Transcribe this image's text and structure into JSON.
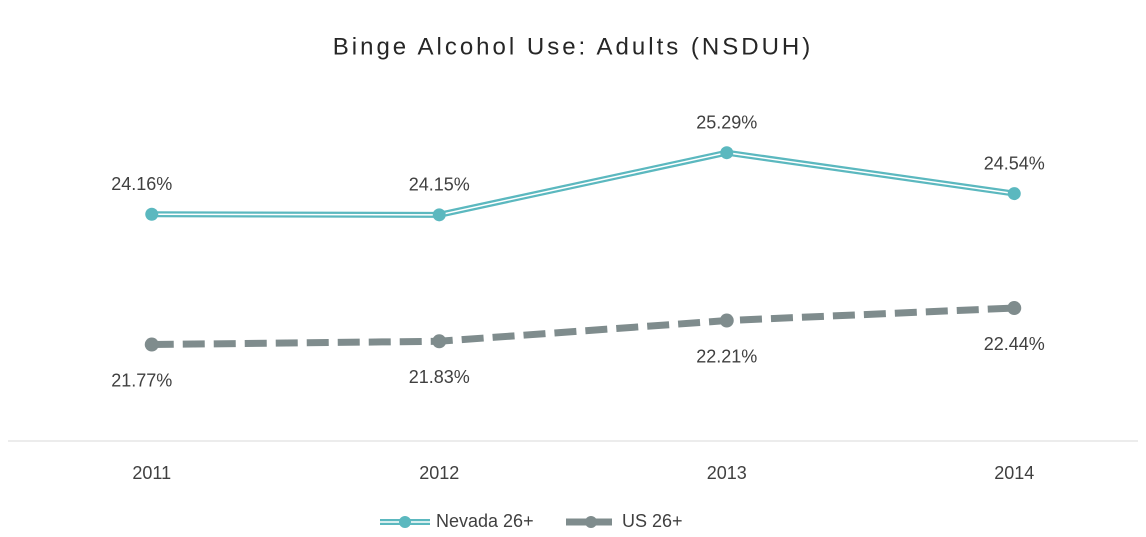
{
  "chart_data": {
    "type": "line",
    "title": "Binge Alcohol Use: Adults (NSDUH)",
    "categories": [
      "2011",
      "2012",
      "2013",
      "2014"
    ],
    "series": [
      {
        "name": "Nevada 26+",
        "color": "#5bb8bf",
        "values": [
          24.16,
          24.15,
          25.29,
          24.54
        ],
        "value_labels": [
          "24.16%",
          "24.15%",
          "25.29%",
          "24.54%"
        ]
      },
      {
        "name": "US 26+",
        "color": "#7f8c8d",
        "values": [
          21.77,
          21.83,
          22.21,
          22.44
        ],
        "value_labels": [
          "21.77%",
          "21.83%",
          "22.21%",
          "22.44%"
        ]
      }
    ],
    "ylim": [
      20,
      26
    ],
    "legend": "bottom"
  }
}
